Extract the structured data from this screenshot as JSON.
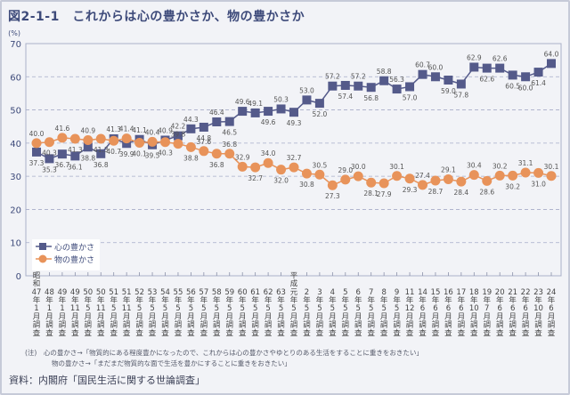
{
  "title": "図2-1-1　これからは心の豊かさか、物の豊かさか",
  "chart_data": {
    "type": "line",
    "title": "図2-1-1　これからは心の豊かさか、物の豊かさか",
    "ylabel": "(%)",
    "xlabel": "",
    "ylim": [
      0,
      70
    ],
    "yticks": [
      0,
      10,
      20,
      30,
      40,
      50,
      60,
      70
    ],
    "grid": true,
    "legend_position": "bottom-left",
    "categories": [
      [
        "昭",
        "和",
        "47",
        "年",
        "1",
        "月",
        "調",
        "査"
      ],
      [
        "48",
        "年",
        "1",
        "月",
        "調",
        "査"
      ],
      [
        "49",
        "年",
        "1",
        "月",
        "調",
        "査"
      ],
      [
        "49",
        "年",
        "11",
        "月",
        "調",
        "査"
      ],
      [
        "50",
        "年",
        "5",
        "月",
        "調",
        "査"
      ],
      [
        "50",
        "年",
        "11",
        "月",
        "調",
        "査"
      ],
      [
        "51",
        "年",
        "5",
        "月",
        "調",
        "査"
      ],
      [
        "51",
        "年",
        "11",
        "月",
        "調",
        "査"
      ],
      [
        "52",
        "年",
        "5",
        "月",
        "調",
        "査"
      ],
      [
        "53",
        "年",
        "5",
        "月",
        "調",
        "査"
      ],
      [
        "54",
        "年",
        "5",
        "月",
        "調",
        "査"
      ],
      [
        "55",
        "年",
        "5",
        "月",
        "調",
        "査"
      ],
      [
        "56",
        "年",
        "5",
        "月",
        "調",
        "査"
      ],
      [
        "57",
        "年",
        "5",
        "月",
        "調",
        "査"
      ],
      [
        "58",
        "年",
        "5",
        "月",
        "調",
        "査"
      ],
      [
        "59",
        "年",
        "5",
        "月",
        "調",
        "査"
      ],
      [
        "60",
        "年",
        "5",
        "月",
        "調",
        "査"
      ],
      [
        "61",
        "年",
        "5",
        "月",
        "調",
        "査"
      ],
      [
        "62",
        "年",
        "5",
        "月",
        "調",
        "査"
      ],
      [
        "63",
        "年",
        "5",
        "月",
        "調",
        "査"
      ],
      [
        "平",
        "成",
        "元",
        "年",
        "5",
        "月",
        "調",
        "査"
      ],
      [
        "2",
        "年",
        "5",
        "月",
        "調",
        "査"
      ],
      [
        "3",
        "年",
        "5",
        "月",
        "調",
        "査"
      ],
      [
        "4",
        "年",
        "5",
        "月",
        "調",
        "査"
      ],
      [
        "5",
        "年",
        "5",
        "月",
        "調",
        "査"
      ],
      [
        "6",
        "年",
        "5",
        "月",
        "調",
        "査"
      ],
      [
        "7",
        "年",
        "5",
        "月",
        "調",
        "査"
      ],
      [
        "8",
        "年",
        "5",
        "月",
        "調",
        "査"
      ],
      [
        "9",
        "年",
        "5",
        "月",
        "調",
        "査"
      ],
      [
        "11",
        "年",
        "12",
        "月",
        "調",
        "査"
      ],
      [
        "14",
        "年",
        "6",
        "月",
        "調",
        "査"
      ],
      [
        "15",
        "年",
        "6",
        "月",
        "調",
        "査"
      ],
      [
        "16",
        "年",
        "6",
        "月",
        "調",
        "査"
      ],
      [
        "17",
        "年",
        "6",
        "月",
        "調",
        "査"
      ],
      [
        "18",
        "年",
        "10",
        "月",
        "調",
        "査"
      ],
      [
        "19",
        "年",
        "7",
        "月",
        "調",
        "査"
      ],
      [
        "20",
        "年",
        "6",
        "月",
        "調",
        "査"
      ],
      [
        "21",
        "年",
        "6",
        "月",
        "調",
        "査"
      ],
      [
        "22",
        "年",
        "6",
        "月",
        "調",
        "査"
      ],
      [
        "23",
        "年",
        "10",
        "月",
        "調",
        "査"
      ],
      [
        "24",
        "年",
        "6",
        "月",
        "調",
        "査"
      ]
    ],
    "series": [
      {
        "name": "心の豊かさ",
        "marker": "square",
        "color": "#545a8a",
        "values": [
          37.3,
          35.3,
          36.7,
          36.1,
          38.8,
          36.8,
          41.3,
          39.9,
          41.1,
          39.5,
          40.9,
          42.2,
          44.3,
          44.8,
          46.4,
          46.5,
          49.6,
          49.1,
          49.6,
          50.3,
          49.3,
          53.0,
          52.0,
          57.2,
          57.4,
          57.2,
          56.8,
          58.8,
          56.3,
          57.0,
          60.7,
          60.0,
          59.0,
          57.8,
          62.9,
          62.6,
          62.6,
          60.5,
          60.0,
          61.4,
          64.0
        ],
        "label_pos": [
          "b",
          "b",
          "b",
          "b",
          "b",
          "b",
          "a",
          "b",
          "a",
          "b",
          "a",
          "a",
          "a",
          "b",
          "a",
          "b",
          "a",
          "a",
          "b",
          "a",
          "b",
          "a",
          "b",
          "a",
          "b",
          "a",
          "b",
          "a",
          "a",
          "b",
          "a",
          "a",
          "b",
          "b",
          "a",
          "b",
          "a",
          "b",
          "b",
          "b",
          "a"
        ]
      },
      {
        "name": "物の豊かさ",
        "marker": "circle",
        "color": "#e8935a",
        "values": [
          40.0,
          40.3,
          41.6,
          41.3,
          40.9,
          41.3,
          40.7,
          41.4,
          40.1,
          40.4,
          40.3,
          39.8,
          38.8,
          37.6,
          36.8,
          36.8,
          32.9,
          32.7,
          34.0,
          32.0,
          32.7,
          30.8,
          30.5,
          27.3,
          29.0,
          30.0,
          28.1,
          27.9,
          30.1,
          29.3,
          27.4,
          28.7,
          29.1,
          28.4,
          30.4,
          28.6,
          30.2,
          30.2,
          31.1,
          31.0,
          30.1
        ],
        "label_pos": [
          "a",
          "b",
          "a",
          "b",
          "a",
          "b",
          "b",
          "a",
          "b",
          "a",
          "b",
          "a",
          "b",
          "a",
          "b",
          "a",
          "a",
          "b",
          "a",
          "b",
          "a",
          "b",
          "a",
          "b",
          "a",
          "a",
          "b",
          "b",
          "a",
          "b",
          "a",
          "b",
          "a",
          "b",
          "a",
          "b",
          "a",
          "b",
          "a",
          "b",
          "a"
        ]
      }
    ]
  },
  "notes": [
    "(注)　心の豊かさ→「物質的にある程度豊かになったので、これからは心の豊かさやゆとりのある生活をすることに重きをおきたい」",
    "物の豊かさ→「まだまだ物質的な面で生活を豊かにすることに重きをおきたい」"
  ],
  "source": "資料：内閣府「国民生活に関する世論調査」"
}
